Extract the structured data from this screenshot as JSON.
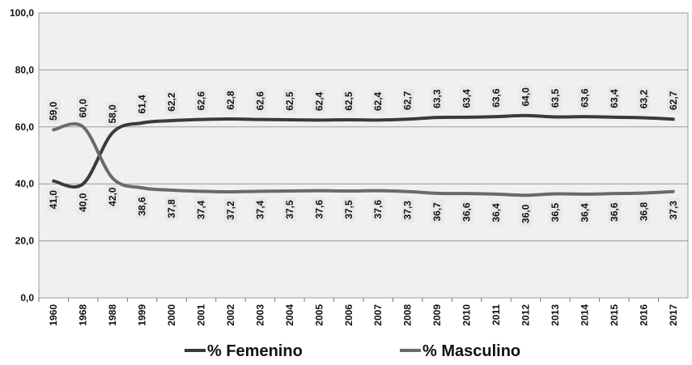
{
  "chart_data": {
    "type": "line",
    "title": "",
    "xlabel": "",
    "ylabel": "",
    "ylim": [
      0,
      100
    ],
    "grid": true,
    "legend_position": "bottom",
    "y_ticks": [
      "0,0",
      "20,0",
      "40,0",
      "60,0",
      "80,0",
      "100,0"
    ],
    "categories": [
      "1960",
      "1968",
      "1988",
      "1999",
      "2000",
      "2001",
      "2002",
      "2003",
      "2004",
      "2005",
      "2006",
      "2007",
      "2008",
      "2009",
      "2010",
      "2011",
      "2012",
      "2013",
      "2014",
      "2015",
      "2016",
      "2017"
    ],
    "series": [
      {
        "name": "% Femenino",
        "color": "#3a3a3a",
        "values": [
          41.0,
          40.0,
          58.0,
          61.4,
          62.2,
          62.6,
          62.8,
          62.6,
          62.5,
          62.4,
          62.5,
          62.4,
          62.7,
          63.3,
          63.4,
          63.6,
          64.0,
          63.5,
          63.6,
          63.4,
          63.2,
          62.7
        ],
        "labels": [
          "41,0",
          "40,0",
          "58,0",
          "61,4",
          "62,2",
          "62,6",
          "62,8",
          "62,6",
          "62,5",
          "62,4",
          "62,5",
          "62,4",
          "62,7",
          "63,3",
          "63,4",
          "63,6",
          "64,0",
          "63,5",
          "63,6",
          "63,4",
          "63,2",
          "62,7"
        ]
      },
      {
        "name": "% Masculino",
        "color": "#6a6a6a",
        "values": [
          59.0,
          60.0,
          42.0,
          38.6,
          37.8,
          37.4,
          37.2,
          37.4,
          37.5,
          37.6,
          37.5,
          37.6,
          37.3,
          36.7,
          36.6,
          36.4,
          36.0,
          36.5,
          36.4,
          36.6,
          36.8,
          37.3
        ],
        "labels": [
          "59,0",
          "60,0",
          "42,0",
          "38,6",
          "37,8",
          "37,4",
          "37,2",
          "37,4",
          "37,5",
          "37,6",
          "37,5",
          "37,6",
          "37,3",
          "36,7",
          "36,6",
          "36,4",
          "36,0",
          "36,5",
          "36,4",
          "36,6",
          "36,8",
          "37,3"
        ]
      }
    ]
  }
}
